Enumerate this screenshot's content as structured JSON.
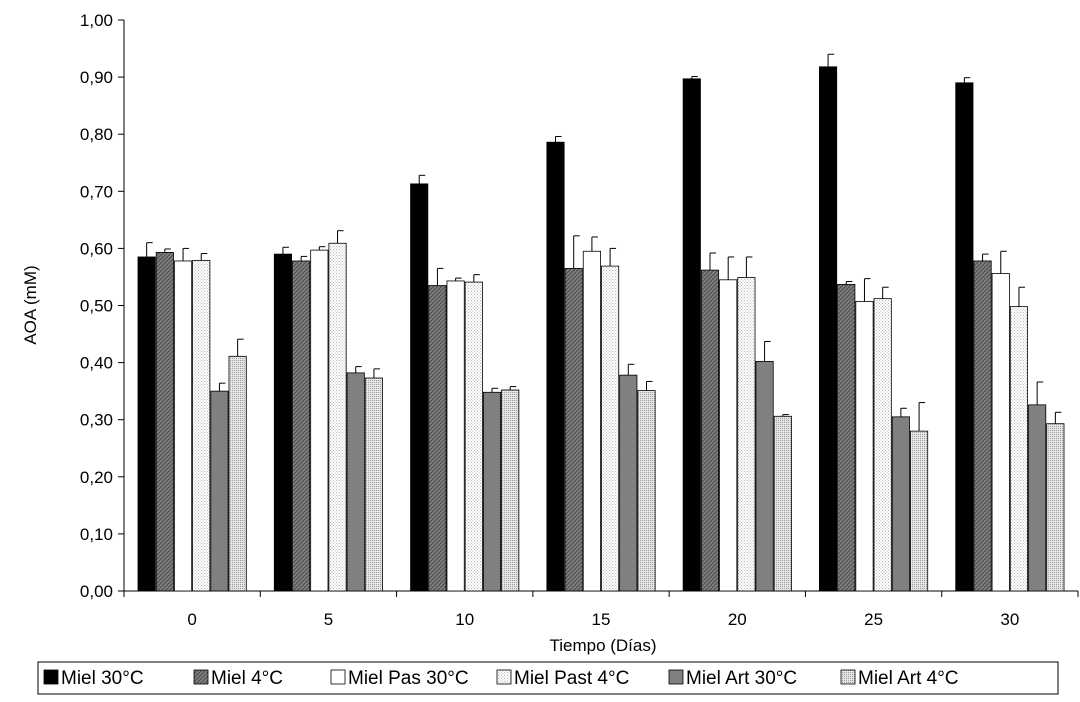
{
  "chart_data": {
    "type": "bar",
    "title": "",
    "xlabel": "Tiempo (Días)",
    "ylabel": "AOA (mM)",
    "ylim": [
      0,
      1.0
    ],
    "yticks": [
      "0,00",
      "0,10",
      "0,20",
      "0,30",
      "0,40",
      "0,50",
      "0,60",
      "0,70",
      "0,80",
      "0,90",
      "1,00"
    ],
    "categories": [
      "0",
      "5",
      "10",
      "15",
      "20",
      "25",
      "30"
    ],
    "grid": false,
    "legend_position": "bottom",
    "series": [
      {
        "name": "Miel 30°C",
        "values": [
          0.585,
          0.59,
          0.713,
          0.786,
          0.897,
          0.918,
          0.89
        ],
        "errors": [
          0.025,
          0.012,
          0.015,
          0.01,
          0.004,
          0.022,
          0.009
        ],
        "fill": "solid",
        "color": "#000000"
      },
      {
        "name": "Miel 4°C",
        "values": [
          0.593,
          0.578,
          0.535,
          0.565,
          0.562,
          0.537,
          0.578
        ],
        "errors": [
          0.006,
          0.008,
          0.03,
          0.057,
          0.03,
          0.005,
          0.012
        ],
        "fill": "hatch",
        "color": "#7a7a7a"
      },
      {
        "name": "Miel Pas 30°C",
        "values": [
          0.578,
          0.597,
          0.543,
          0.595,
          0.545,
          0.507,
          0.556
        ],
        "errors": [
          0.022,
          0.006,
          0.005,
          0.025,
          0.04,
          0.04,
          0.039
        ],
        "fill": "white",
        "color": "#ffffff"
      },
      {
        "name": "Miel Past 4°C",
        "values": [
          0.579,
          0.609,
          0.541,
          0.569,
          0.549,
          0.512,
          0.498
        ],
        "errors": [
          0.012,
          0.022,
          0.013,
          0.031,
          0.036,
          0.02,
          0.034
        ],
        "fill": "dots",
        "color": "#f0f0f0"
      },
      {
        "name": "Miel Art 30°C",
        "values": [
          0.35,
          0.382,
          0.348,
          0.378,
          0.402,
          0.305,
          0.326
        ],
        "errors": [
          0.014,
          0.011,
          0.007,
          0.019,
          0.035,
          0.015,
          0.04
        ],
        "fill": "solid",
        "color": "#808080"
      },
      {
        "name": "Miel Art 4°C",
        "values": [
          0.411,
          0.373,
          0.352,
          0.351,
          0.306,
          0.28,
          0.293
        ],
        "errors": [
          0.03,
          0.016,
          0.006,
          0.016,
          0.003,
          0.05,
          0.02
        ],
        "fill": "dots",
        "color": "#c8c8c8"
      }
    ]
  }
}
